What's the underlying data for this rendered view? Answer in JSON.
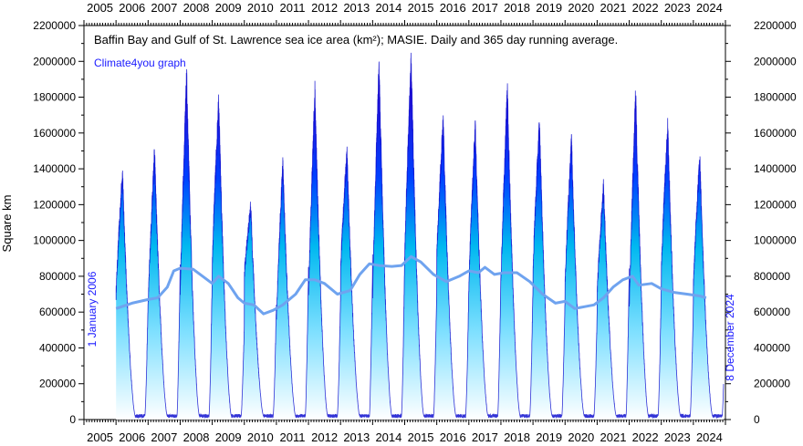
{
  "chart_data": {
    "type": "area",
    "title": "Baffin Bay and Gulf of St. Lawrence sea ice area (km²); MASIE. Daily and 365 day running average.",
    "credit": "Climate4you graph",
    "ylabel": "Square km",
    "start_label": "1 January 2006",
    "end_label": "8 December 2024",
    "xlim": [
      2005,
      2025
    ],
    "ylim": [
      0,
      2200000
    ],
    "y_ticks": [
      "0",
      "200000",
      "400000",
      "600000",
      "800000",
      "1000000",
      "1200000",
      "1400000",
      "1600000",
      "1800000",
      "2000000",
      "2200000"
    ],
    "year_ticks": [
      "2005",
      "2006",
      "2007",
      "2008",
      "2009",
      "2010",
      "2011",
      "2012",
      "2013",
      "2014",
      "2015",
      "2016",
      "2017",
      "2018",
      "2019",
      "2020",
      "2021",
      "2022",
      "2023",
      "2024"
    ],
    "series": [
      {
        "name": "Daily sea ice area",
        "color": "#0000cc",
        "data_start": 2006.0,
        "data_end": 2024.94,
        "annual_max": [
          {
            "year": 2006,
            "peak_date": 2006.2,
            "max": 1380000
          },
          {
            "year": 2007,
            "peak_date": 2007.2,
            "max": 1490000
          },
          {
            "year": 2008,
            "peak_date": 2008.2,
            "max": 1910000
          },
          {
            "year": 2009,
            "peak_date": 2009.2,
            "max": 1770000
          },
          {
            "year": 2010,
            "peak_date": 2010.2,
            "max": 1190000
          },
          {
            "year": 2011,
            "peak_date": 2011.2,
            "max": 1430000
          },
          {
            "year": 2012,
            "peak_date": 2012.2,
            "max": 1830000
          },
          {
            "year": 2013,
            "peak_date": 2013.2,
            "max": 1490000
          },
          {
            "year": 2014,
            "peak_date": 2014.2,
            "max": 1980000
          },
          {
            "year": 2015,
            "peak_date": 2015.2,
            "max": 2000000
          },
          {
            "year": 2016,
            "peak_date": 2016.2,
            "max": 1660000
          },
          {
            "year": 2017,
            "peak_date": 2017.2,
            "max": 1630000
          },
          {
            "year": 2018,
            "peak_date": 2018.2,
            "max": 1830000
          },
          {
            "year": 2019,
            "peak_date": 2019.2,
            "max": 1650000
          },
          {
            "year": 2020,
            "peak_date": 2020.2,
            "max": 1550000
          },
          {
            "year": 2021,
            "peak_date": 2021.2,
            "max": 1300000
          },
          {
            "year": 2022,
            "peak_date": 2022.2,
            "max": 1810000
          },
          {
            "year": 2023,
            "peak_date": 2023.2,
            "max": 1640000
          },
          {
            "year": 2024,
            "peak_date": 2024.2,
            "max": 1460000
          }
        ],
        "summer_min": 20000
      },
      {
        "name": "365 day running average",
        "color": "#6fa3ef",
        "points": [
          [
            2006.0,
            620000
          ],
          [
            2006.5,
            650000
          ],
          [
            2007.0,
            670000
          ],
          [
            2007.3,
            680000
          ],
          [
            2007.6,
            740000
          ],
          [
            2007.8,
            830000
          ],
          [
            2008.0,
            845000
          ],
          [
            2008.4,
            840000
          ],
          [
            2008.7,
            800000
          ],
          [
            2009.0,
            760000
          ],
          [
            2009.2,
            800000
          ],
          [
            2009.5,
            760000
          ],
          [
            2009.8,
            680000
          ],
          [
            2010.0,
            650000
          ],
          [
            2010.3,
            640000
          ],
          [
            2010.6,
            590000
          ],
          [
            2010.9,
            610000
          ],
          [
            2011.2,
            640000
          ],
          [
            2011.6,
            700000
          ],
          [
            2011.9,
            780000
          ],
          [
            2012.2,
            780000
          ],
          [
            2012.5,
            760000
          ],
          [
            2012.9,
            700000
          ],
          [
            2013.3,
            720000
          ],
          [
            2013.6,
            810000
          ],
          [
            2013.9,
            870000
          ],
          [
            2014.2,
            860000
          ],
          [
            2014.6,
            855000
          ],
          [
            2014.9,
            860000
          ],
          [
            2015.2,
            910000
          ],
          [
            2015.5,
            880000
          ],
          [
            2015.9,
            810000
          ],
          [
            2016.3,
            770000
          ],
          [
            2016.7,
            800000
          ],
          [
            2017.0,
            830000
          ],
          [
            2017.3,
            820000
          ],
          [
            2017.5,
            850000
          ],
          [
            2017.8,
            810000
          ],
          [
            2018.1,
            820000
          ],
          [
            2018.5,
            820000
          ],
          [
            2018.9,
            770000
          ],
          [
            2019.3,
            700000
          ],
          [
            2019.7,
            650000
          ],
          [
            2020.0,
            660000
          ],
          [
            2020.3,
            620000
          ],
          [
            2020.6,
            630000
          ],
          [
            2020.9,
            640000
          ],
          [
            2021.2,
            680000
          ],
          [
            2021.5,
            740000
          ],
          [
            2021.8,
            780000
          ],
          [
            2022.1,
            800000
          ],
          [
            2022.3,
            750000
          ],
          [
            2022.7,
            760000
          ],
          [
            2023.0,
            730000
          ],
          [
            2023.4,
            710000
          ],
          [
            2023.8,
            700000
          ],
          [
            2024.2,
            690000
          ],
          [
            2024.4,
            680000
          ]
        ]
      }
    ],
    "grid": false,
    "legend": "none"
  }
}
